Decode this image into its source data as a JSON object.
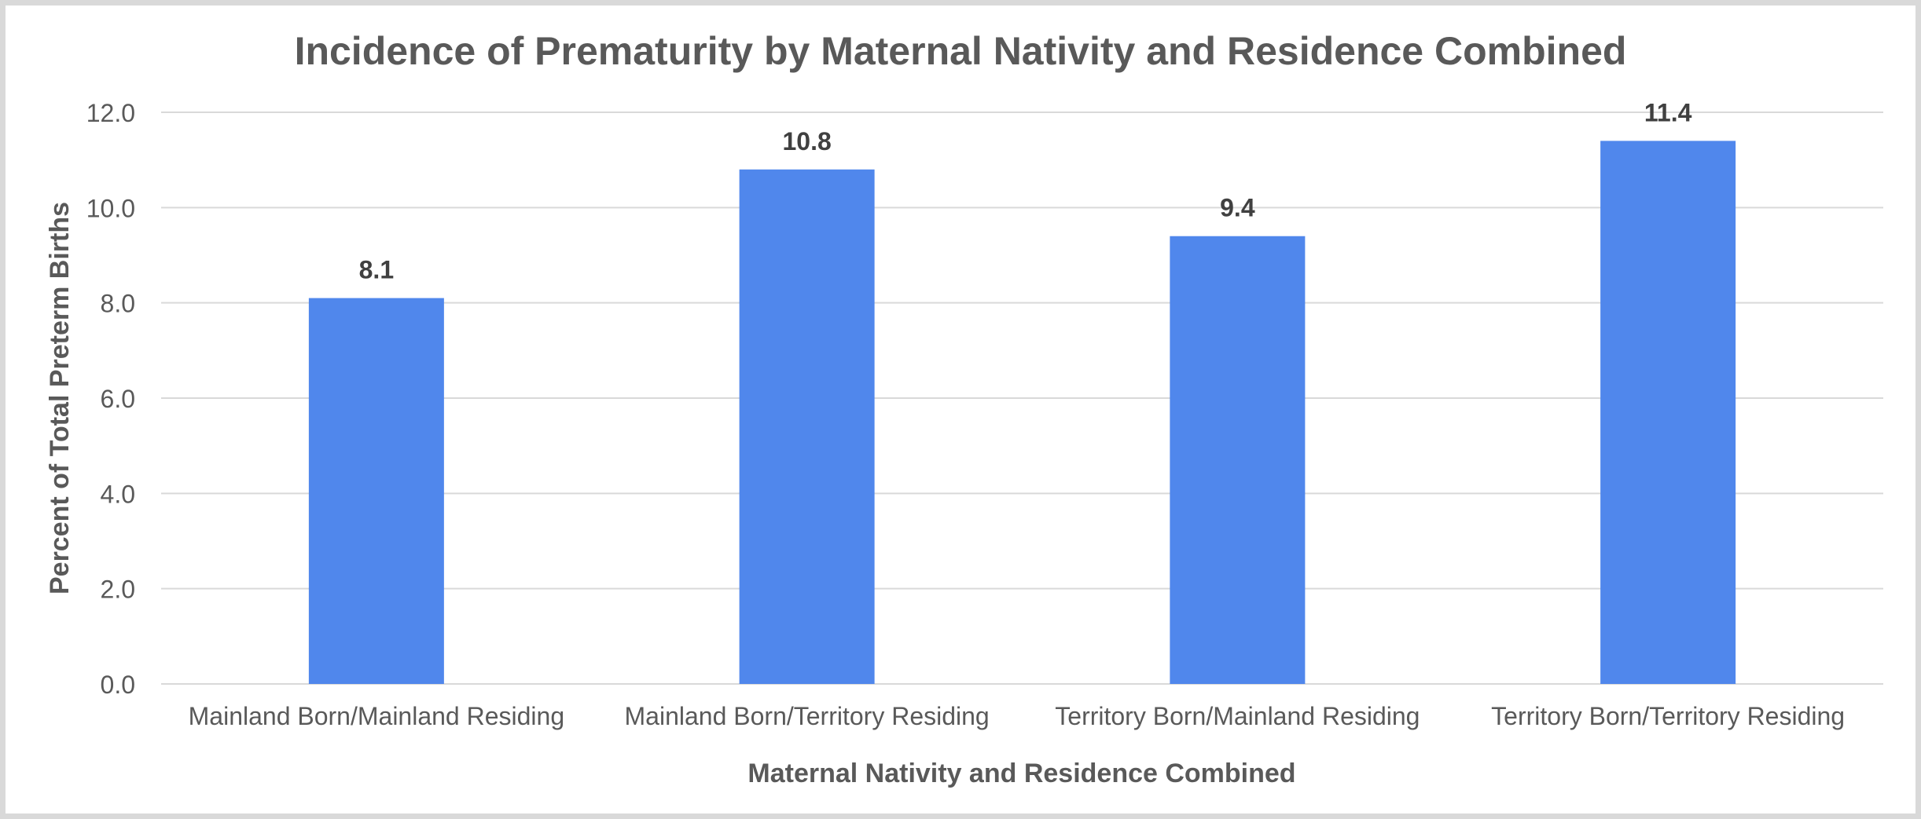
{
  "chart_data": {
    "type": "bar",
    "title": "Incidence of Prematurity by Maternal Nativity and Residence Combined",
    "xlabel": "Maternal Nativity and Residence Combined",
    "ylabel": "Percent of Total Preterm Births",
    "categories": [
      "Mainland Born/Mainland Residing",
      "Mainland Born/Territory Residing",
      "Territory Born/Mainland Residing",
      "Territory Born/Territory Residing"
    ],
    "values": [
      8.1,
      10.8,
      9.4,
      11.4
    ],
    "data_labels": [
      "8.1",
      "10.8",
      "9.4",
      "11.4"
    ],
    "ylim": [
      0,
      12
    ],
    "yticks": [
      "0.0",
      "2.0",
      "4.0",
      "6.0",
      "8.0",
      "10.0",
      "12.0"
    ],
    "grid": true,
    "legend": "none",
    "colors": {
      "bar": "#5087EC",
      "text": "#595959",
      "label": "#404040",
      "grid": "#d9d9d9"
    }
  }
}
